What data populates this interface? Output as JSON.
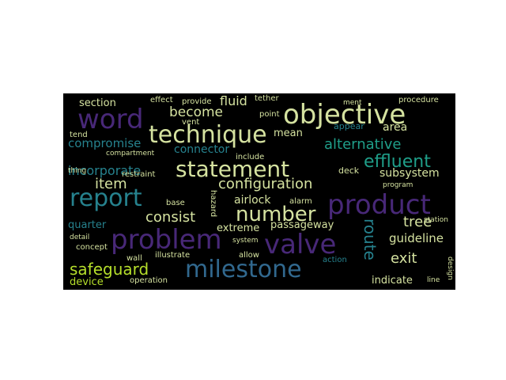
{
  "palette": {
    "background": "#000000",
    "purple": "#482878",
    "violet": "#3e4a89",
    "blue": "#31688e",
    "teal": "#26828e",
    "green": "#1f9e89",
    "lime": "#35b779",
    "yellow": "#b5de2b",
    "pale": "#d5e2a0"
  },
  "words": [
    "objective",
    "technique",
    "statement",
    "milestone",
    "word",
    "report",
    "problem",
    "valve",
    "product",
    "number",
    "configuration",
    "alternative",
    "effluent",
    "item",
    "consist",
    "route",
    "safeguard",
    "incorporate",
    "compromise",
    "become",
    "section",
    "fluid",
    "quarter",
    "device",
    "extreme",
    "exit",
    "guideline",
    "tree",
    "subsystem",
    "passageway",
    "airlock",
    "mean",
    "area",
    "connector",
    "indicate",
    "procedure",
    "concept",
    "wall",
    "operation",
    "illustrate",
    "restraint",
    "tend",
    "thing",
    "appear",
    "deck",
    "effect",
    "provide",
    "vent",
    "tether",
    "point",
    "ment",
    "detail",
    "allow",
    "action",
    "station",
    "include",
    "alarm",
    "hazard",
    "base",
    "program",
    "design",
    "line",
    "system",
    "compartment"
  ]
}
